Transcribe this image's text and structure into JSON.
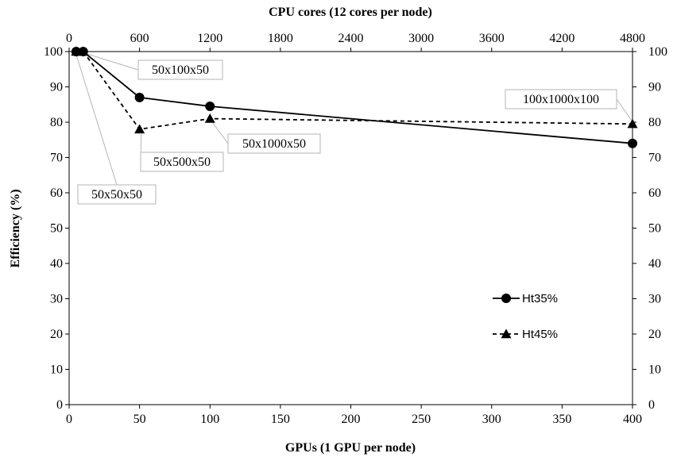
{
  "chart_data": {
    "type": "line",
    "xlabel": "GPUs (1 GPU per node)",
    "x2label": "CPU cores (12 cores per node)",
    "ylabel": "Efficiency (%)",
    "xlim": [
      0,
      400
    ],
    "x2lim": [
      0,
      4800
    ],
    "ylim": [
      0,
      100
    ],
    "xticks": [
      0,
      50,
      100,
      150,
      200,
      250,
      300,
      350,
      400
    ],
    "x2ticks": [
      0,
      600,
      1200,
      1800,
      2400,
      3000,
      3600,
      4200,
      4800
    ],
    "yticks": [
      0,
      10,
      20,
      30,
      40,
      50,
      60,
      70,
      80,
      90,
      100
    ],
    "grid": false,
    "legend_position": "right",
    "series": [
      {
        "name": "Ht35%",
        "style": "solid",
        "marker": "circle",
        "color": "#000000",
        "x": [
          5,
          10,
          50,
          100,
          400
        ],
        "y": [
          100,
          100,
          87,
          84.5,
          74
        ]
      },
      {
        "name": "Ht45%",
        "style": "dashed",
        "marker": "triangle",
        "color": "#000000",
        "x": [
          5,
          10,
          50,
          100,
          400
        ],
        "y": [
          100,
          100,
          78,
          81,
          79.5
        ]
      }
    ],
    "annotations": [
      {
        "text": "50x50x50",
        "x": 5,
        "y": 100
      },
      {
        "text": "50x100x50",
        "x": 10,
        "y": 100
      },
      {
        "text": "50x500x50",
        "x": 50,
        "y": 78
      },
      {
        "text": "50x1000x50",
        "x": 100,
        "y": 81
      },
      {
        "text": "100x1000x100",
        "x": 400,
        "y": 79.5
      }
    ]
  }
}
